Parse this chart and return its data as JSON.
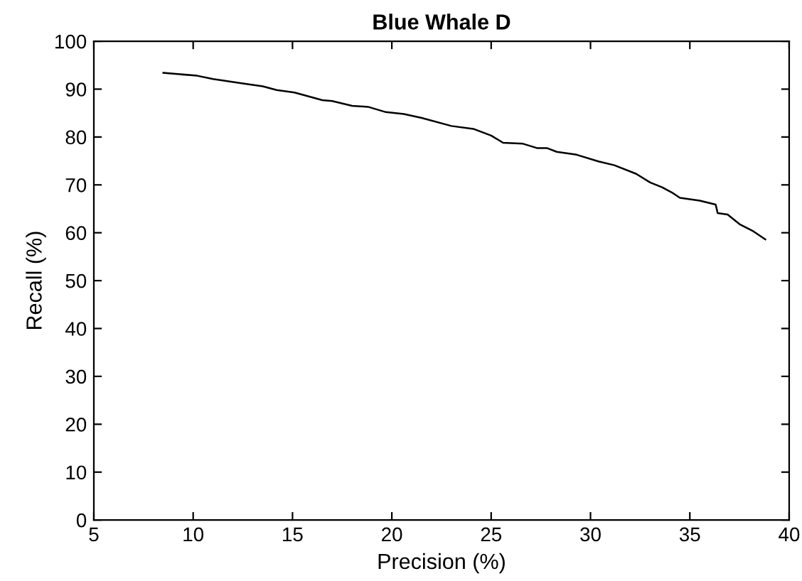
{
  "chart_data": {
    "type": "line",
    "title": "Blue Whale D",
    "xlabel": "Precision (%)",
    "ylabel": "Recall (%)",
    "xlim": [
      5,
      40
    ],
    "ylim": [
      0,
      100
    ],
    "xticks": [
      5,
      10,
      15,
      20,
      25,
      30,
      35,
      40
    ],
    "yticks": [
      0,
      10,
      20,
      30,
      40,
      50,
      60,
      70,
      80,
      90,
      100
    ],
    "grid": false,
    "series": [
      {
        "color": "#000000",
        "x": [
          8.5,
          10.2,
          11,
          12.5,
          13.5,
          14.2,
          15.1,
          16.5,
          17,
          18,
          18.8,
          19.7,
          20.6,
          21.5,
          23,
          24.1,
          25,
          25.6,
          26.6,
          27.3,
          27.8,
          28.3,
          29.3,
          30.4,
          31.2,
          32.3,
          33,
          33.6,
          34.1,
          34.5,
          35.5,
          36.3,
          36.4,
          36.9,
          37.5,
          38.2,
          38.8
        ],
        "values": [
          93.4,
          92.8,
          92.1,
          91.2,
          90.6,
          89.8,
          89.3,
          87.7,
          87.5,
          86.5,
          86.3,
          85.2,
          84.8,
          84,
          82.3,
          81.7,
          80.3,
          78.8,
          78.6,
          77.7,
          77.7,
          76.9,
          76.3,
          74.9,
          74.1,
          72.3,
          70.5,
          69.5,
          68.4,
          67.3,
          66.7,
          65.9,
          64.1,
          63.8,
          61.8,
          60.3,
          58.6
        ]
      }
    ]
  }
}
